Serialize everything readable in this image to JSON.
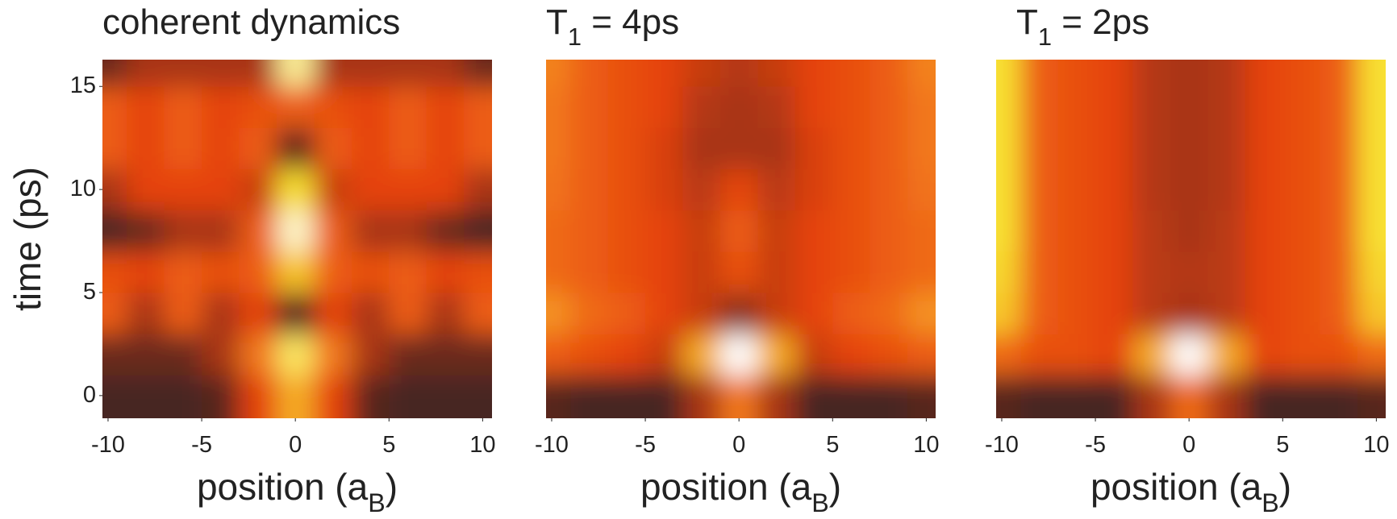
{
  "chart_data": [
    {
      "type": "heatmap",
      "title": "coherent dynamics",
      "xlabel": "position (a_B)",
      "ylabel": "time (ps)",
      "x": [
        -10,
        -8,
        -6,
        -4,
        -2,
        0,
        2,
        4,
        6,
        8,
        10
      ],
      "y": [
        0,
        2,
        4,
        6,
        8,
        10,
        12,
        14,
        16
      ],
      "xlim": [
        -10.3,
        10.5
      ],
      "ylim": [
        -1.1,
        16.3
      ],
      "xticks": [
        -10,
        -5,
        0,
        5,
        10
      ],
      "yticks": [
        0,
        5,
        10,
        15
      ],
      "colorscale": [
        "#222222",
        "#6b2a1e",
        "#e5420d",
        "#f2781c",
        "#f8e030",
        "#ffffff"
      ],
      "z": [
        [
          0.1,
          0.1,
          0.1,
          0.15,
          0.4,
          0.7,
          0.4,
          0.15,
          0.1,
          0.1,
          0.1
        ],
        [
          0.2,
          0.2,
          0.2,
          0.3,
          0.6,
          0.85,
          0.6,
          0.3,
          0.2,
          0.2,
          0.2
        ],
        [
          0.5,
          0.3,
          0.5,
          0.3,
          0.4,
          0.1,
          0.4,
          0.3,
          0.5,
          0.3,
          0.5
        ],
        [
          0.45,
          0.4,
          0.5,
          0.45,
          0.5,
          0.75,
          0.5,
          0.45,
          0.5,
          0.4,
          0.45
        ],
        [
          0.1,
          0.2,
          0.3,
          0.3,
          0.5,
          0.95,
          0.5,
          0.3,
          0.3,
          0.2,
          0.1
        ],
        [
          0.3,
          0.4,
          0.4,
          0.4,
          0.35,
          0.8,
          0.35,
          0.4,
          0.4,
          0.4,
          0.3
        ],
        [
          0.5,
          0.4,
          0.5,
          0.4,
          0.5,
          0.15,
          0.5,
          0.4,
          0.5,
          0.4,
          0.5
        ],
        [
          0.5,
          0.4,
          0.5,
          0.4,
          0.45,
          0.5,
          0.45,
          0.4,
          0.5,
          0.4,
          0.5
        ],
        [
          0.2,
          0.3,
          0.3,
          0.3,
          0.3,
          0.9,
          0.3,
          0.3,
          0.3,
          0.3,
          0.2
        ]
      ]
    },
    {
      "type": "heatmap",
      "title": "T_1 = 4ps",
      "xlabel": "position (a_B)",
      "x": [
        -10,
        -8,
        -6,
        -4,
        -2,
        0,
        2,
        4,
        6,
        8,
        10
      ],
      "y": [
        0,
        2,
        4,
        6,
        8,
        10,
        12,
        14,
        16
      ],
      "xlim": [
        -10.3,
        10.5
      ],
      "ylim": [
        -1.1,
        16.3
      ],
      "xticks": [
        -10,
        -5,
        0,
        5,
        10
      ],
      "colorscale": [
        "#222222",
        "#6b2a1e",
        "#e5420d",
        "#f2781c",
        "#f8e030",
        "#ffffff"
      ],
      "z": [
        [
          0.15,
          0.1,
          0.1,
          0.1,
          0.3,
          0.6,
          0.3,
          0.1,
          0.1,
          0.1,
          0.15
        ],
        [
          0.5,
          0.45,
          0.4,
          0.35,
          0.7,
          1.0,
          0.7,
          0.35,
          0.4,
          0.45,
          0.5
        ],
        [
          0.65,
          0.55,
          0.5,
          0.4,
          0.35,
          0.25,
          0.35,
          0.4,
          0.5,
          0.55,
          0.65
        ],
        [
          0.55,
          0.5,
          0.45,
          0.4,
          0.35,
          0.45,
          0.35,
          0.4,
          0.45,
          0.5,
          0.55
        ],
        [
          0.55,
          0.5,
          0.45,
          0.4,
          0.35,
          0.5,
          0.35,
          0.4,
          0.45,
          0.5,
          0.55
        ],
        [
          0.58,
          0.5,
          0.45,
          0.38,
          0.33,
          0.42,
          0.33,
          0.38,
          0.45,
          0.5,
          0.58
        ],
        [
          0.6,
          0.5,
          0.45,
          0.38,
          0.3,
          0.3,
          0.3,
          0.38,
          0.45,
          0.5,
          0.6
        ],
        [
          0.6,
          0.5,
          0.45,
          0.4,
          0.32,
          0.3,
          0.32,
          0.4,
          0.45,
          0.5,
          0.6
        ],
        [
          0.62,
          0.5,
          0.45,
          0.4,
          0.35,
          0.32,
          0.35,
          0.4,
          0.45,
          0.5,
          0.62
        ]
      ]
    },
    {
      "type": "heatmap",
      "title": "T_1 = 2ps",
      "xlabel": "position (a_B)",
      "x": [
        -10,
        -8,
        -6,
        -4,
        -2,
        0,
        2,
        4,
        6,
        8,
        10
      ],
      "y": [
        0,
        2,
        4,
        6,
        8,
        10,
        12,
        14,
        16
      ],
      "xlim": [
        -10.3,
        10.5
      ],
      "ylim": [
        -1.1,
        16.3
      ],
      "xticks": [
        -10,
        -5,
        0,
        5,
        10
      ],
      "colorscale": [
        "#222222",
        "#6b2a1e",
        "#e5420d",
        "#f2781c",
        "#f8e030",
        "#ffffff"
      ],
      "z": [
        [
          0.15,
          0.1,
          0.1,
          0.1,
          0.3,
          0.55,
          0.3,
          0.1,
          0.1,
          0.1,
          0.15
        ],
        [
          0.55,
          0.45,
          0.45,
          0.4,
          0.7,
          1.0,
          0.7,
          0.4,
          0.45,
          0.45,
          0.55
        ],
        [
          0.75,
          0.5,
          0.45,
          0.4,
          0.33,
          0.3,
          0.33,
          0.4,
          0.45,
          0.5,
          0.75
        ],
        [
          0.78,
          0.5,
          0.45,
          0.4,
          0.33,
          0.32,
          0.33,
          0.4,
          0.45,
          0.5,
          0.78
        ],
        [
          0.8,
          0.5,
          0.45,
          0.4,
          0.33,
          0.3,
          0.33,
          0.4,
          0.45,
          0.5,
          0.8
        ],
        [
          0.8,
          0.5,
          0.45,
          0.4,
          0.32,
          0.3,
          0.32,
          0.4,
          0.45,
          0.5,
          0.8
        ],
        [
          0.8,
          0.5,
          0.45,
          0.4,
          0.32,
          0.3,
          0.32,
          0.4,
          0.45,
          0.5,
          0.8
        ],
        [
          0.8,
          0.5,
          0.45,
          0.4,
          0.32,
          0.3,
          0.32,
          0.4,
          0.45,
          0.5,
          0.8
        ],
        [
          0.8,
          0.5,
          0.45,
          0.4,
          0.32,
          0.3,
          0.32,
          0.4,
          0.45,
          0.5,
          0.8
        ]
      ]
    }
  ]
}
